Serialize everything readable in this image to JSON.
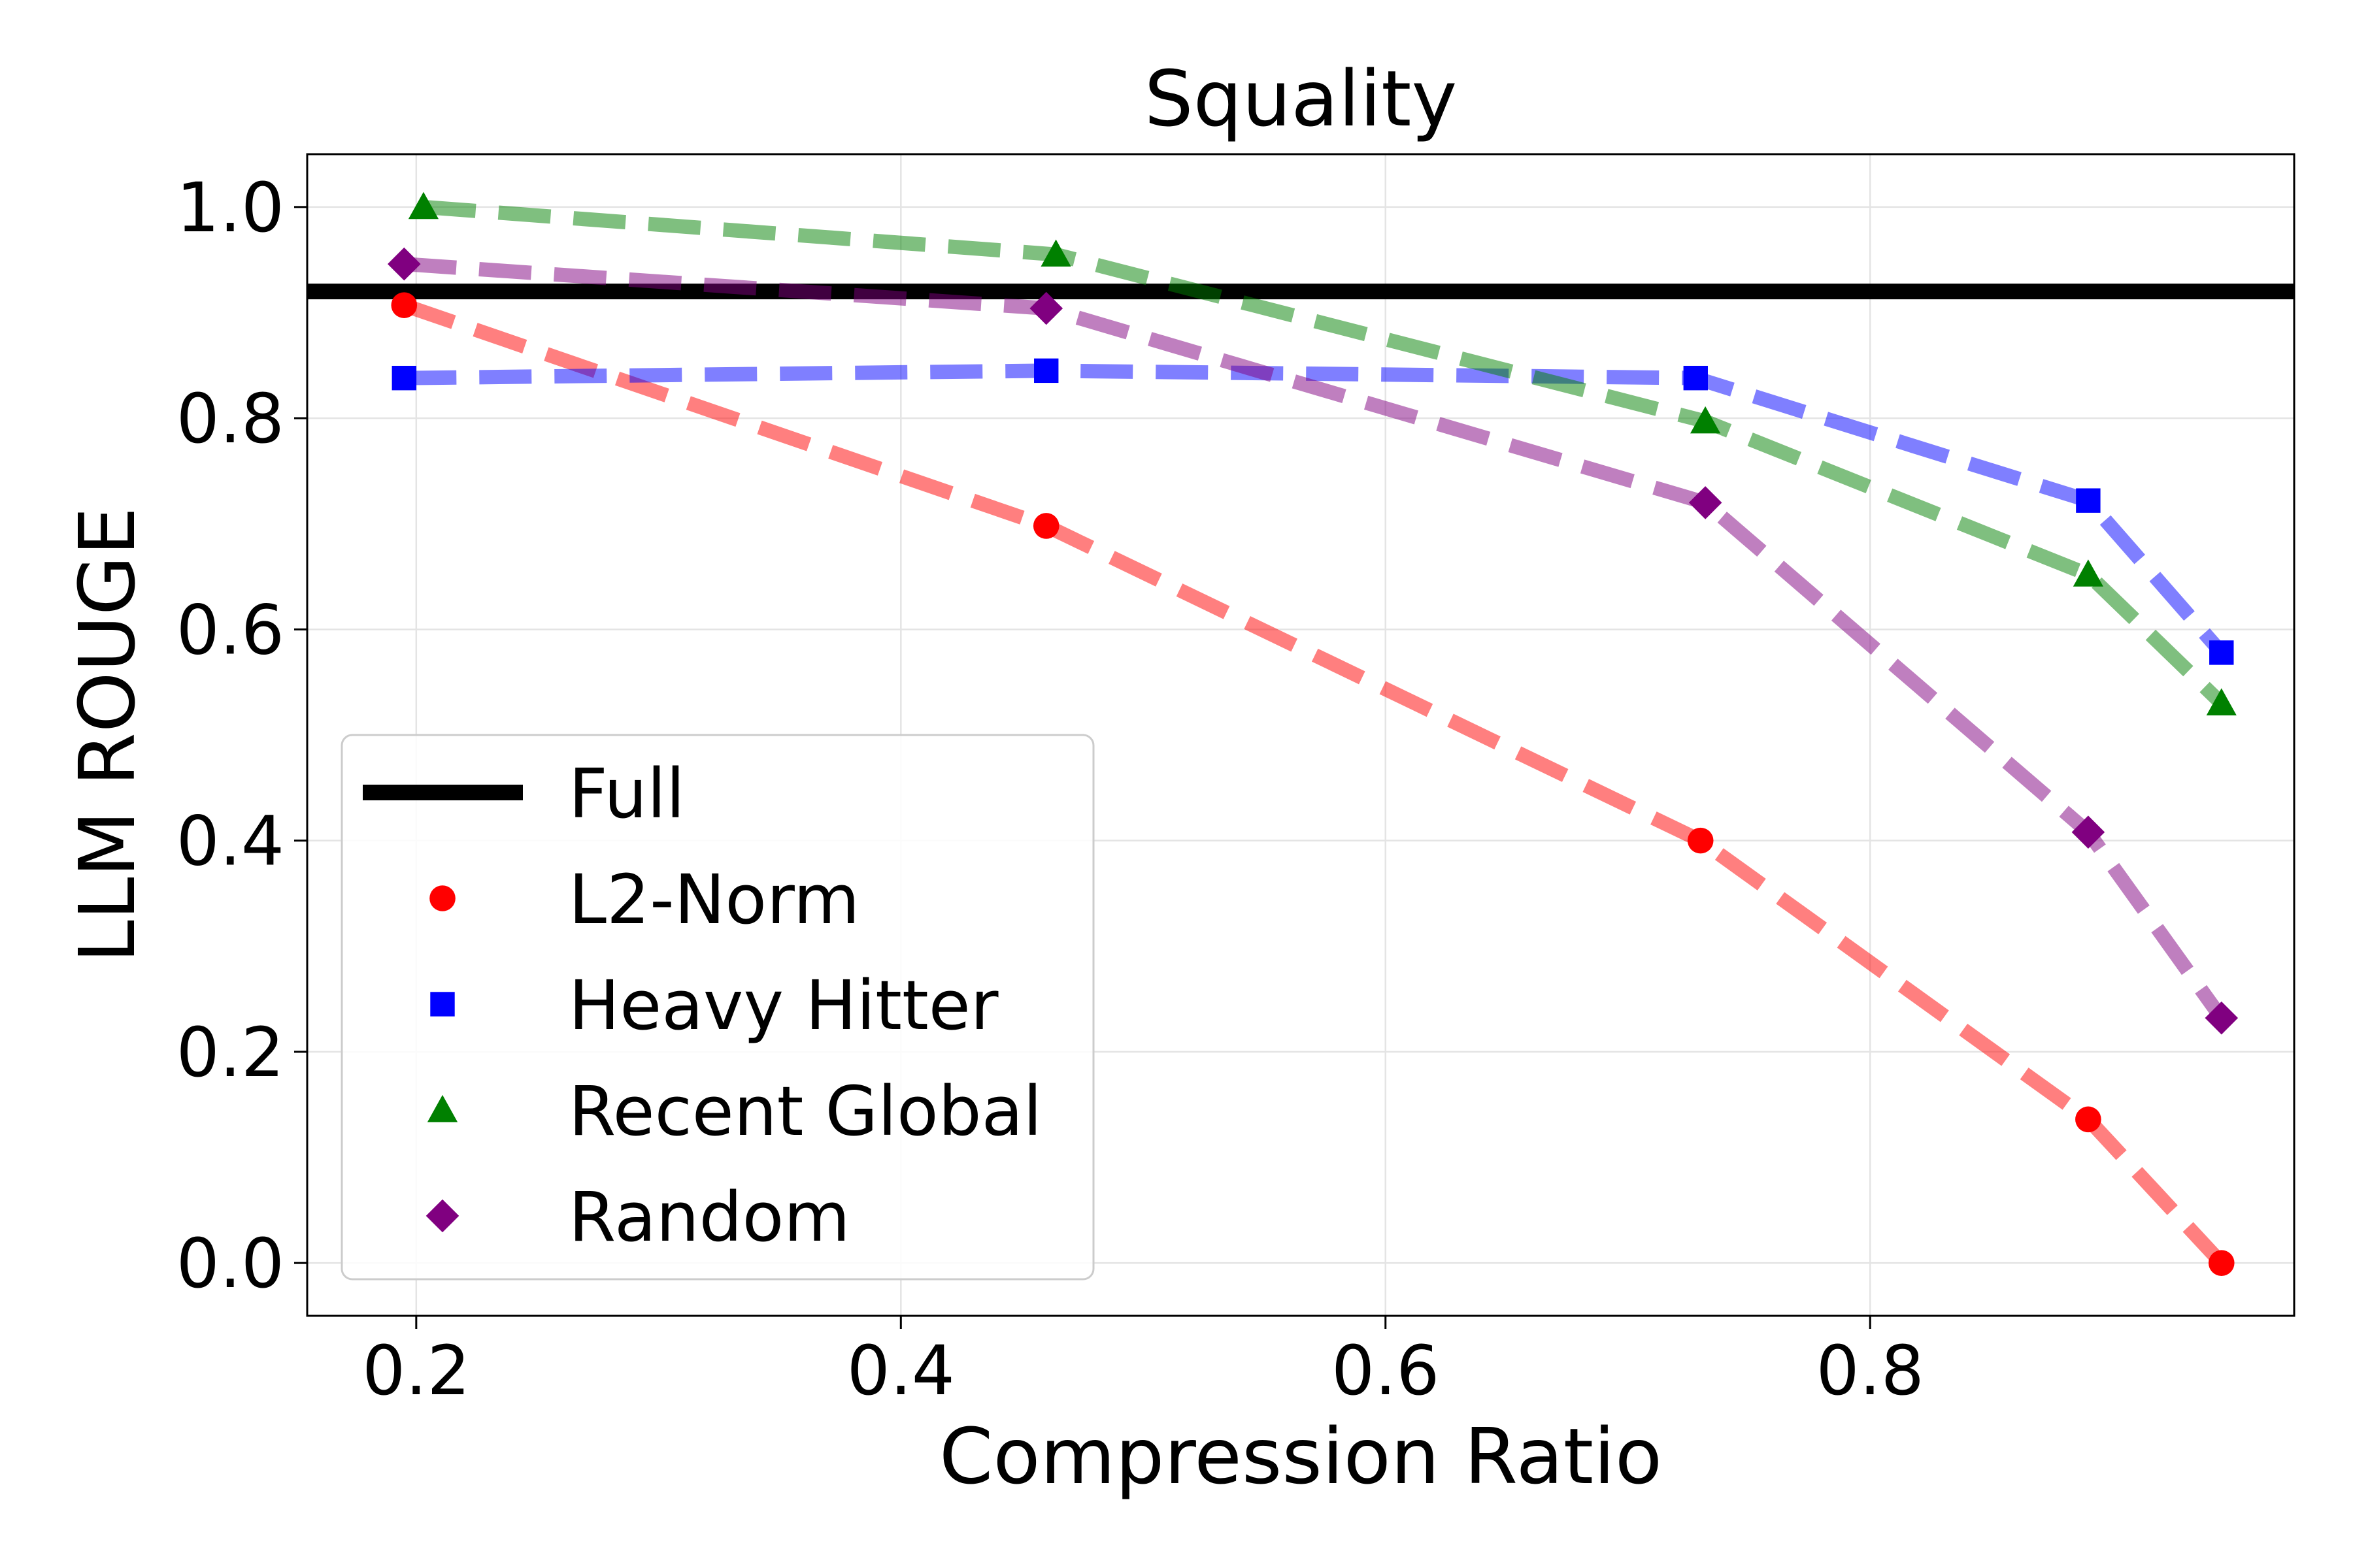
{
  "chart_data": {
    "type": "line",
    "title": "Squality",
    "xlabel": "Compression Ratio",
    "ylabel": "LLM ROUGE",
    "xlim": [
      0.155,
      0.975
    ],
    "ylim": [
      -0.05,
      1.05
    ],
    "xticks": [
      0.2,
      0.4,
      0.6,
      0.8
    ],
    "xtick_labels": [
      "0.2",
      "0.4",
      "0.6",
      "0.8"
    ],
    "yticks": [
      0.0,
      0.2,
      0.4,
      0.6,
      0.8,
      1.0
    ],
    "ytick_labels": [
      "0.0",
      "0.2",
      "0.4",
      "0.6",
      "0.8",
      "1.0"
    ],
    "grid": true,
    "legend_position": "lower-left",
    "full_line": {
      "name": "Full",
      "y": 0.92,
      "color": "#000000"
    },
    "series": [
      {
        "name": "L2-Norm",
        "color": "#ff0000",
        "marker": "circle",
        "x": [
          0.195,
          0.46,
          0.73,
          0.89,
          0.945
        ],
        "y": [
          0.907,
          0.698,
          0.4,
          0.136,
          0.0
        ]
      },
      {
        "name": "Heavy Hitter",
        "color": "#0000ff",
        "marker": "square",
        "x": [
          0.195,
          0.46,
          0.728,
          0.89,
          0.945
        ],
        "y": [
          0.838,
          0.845,
          0.838,
          0.722,
          0.578
        ]
      },
      {
        "name": "Recent Global",
        "color": "#008000",
        "marker": "triangle",
        "x": [
          0.203,
          0.464,
          0.732,
          0.89,
          0.945
        ],
        "y": [
          1.0,
          0.955,
          0.797,
          0.652,
          0.53
        ]
      },
      {
        "name": "Random",
        "color": "#800080",
        "marker": "diamond",
        "x": [
          0.195,
          0.46,
          0.732,
          0.89,
          0.945
        ],
        "y": [
          0.946,
          0.904,
          0.72,
          0.408,
          0.232
        ]
      }
    ]
  }
}
